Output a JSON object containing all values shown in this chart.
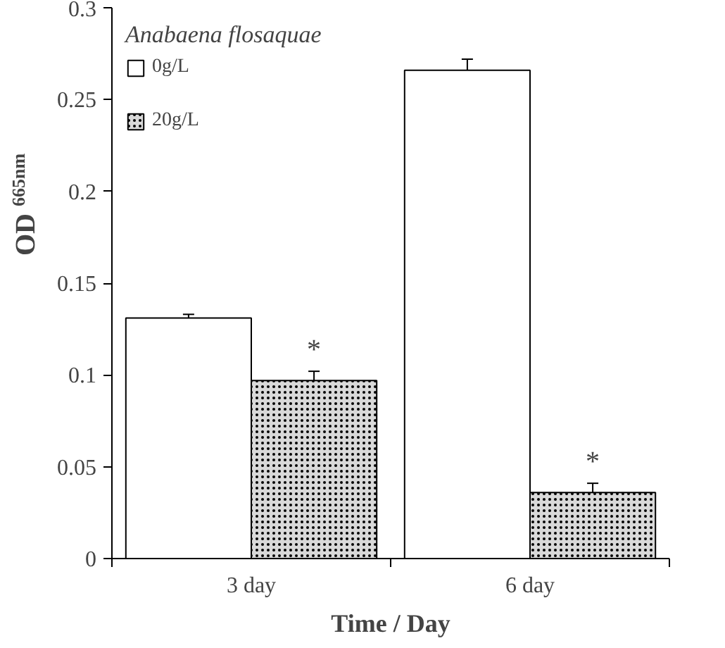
{
  "chart_data": {
    "type": "bar",
    "xlabel": "Time / Day",
    "ylabel": "OD$_{665nm}$",
    "legend_title": "Anabaena flosaquae",
    "categories": [
      "3 day",
      "6 day"
    ],
    "series": [
      {
        "name": "0g/L",
        "color": "#ffffff",
        "values": [
          0.131,
          0.266
        ],
        "errors": [
          0.002,
          0.006
        ]
      },
      {
        "name": "20g/L",
        "color": "#d9d9d9",
        "values": [
          0.097,
          0.036
        ],
        "errors": [
          0.005,
          0.005
        ]
      }
    ],
    "ylim": [
      0,
      0.3
    ],
    "yticks": [
      0,
      0.05,
      0.1,
      0.15,
      0.2,
      0.25,
      0.3
    ],
    "grid": false,
    "legend": "top left",
    "annotations": [
      {
        "text": "*",
        "x": "3 day",
        "y": 0.105
      },
      {
        "text": "*",
        "x": "6 day",
        "y": 0.044
      }
    ]
  }
}
